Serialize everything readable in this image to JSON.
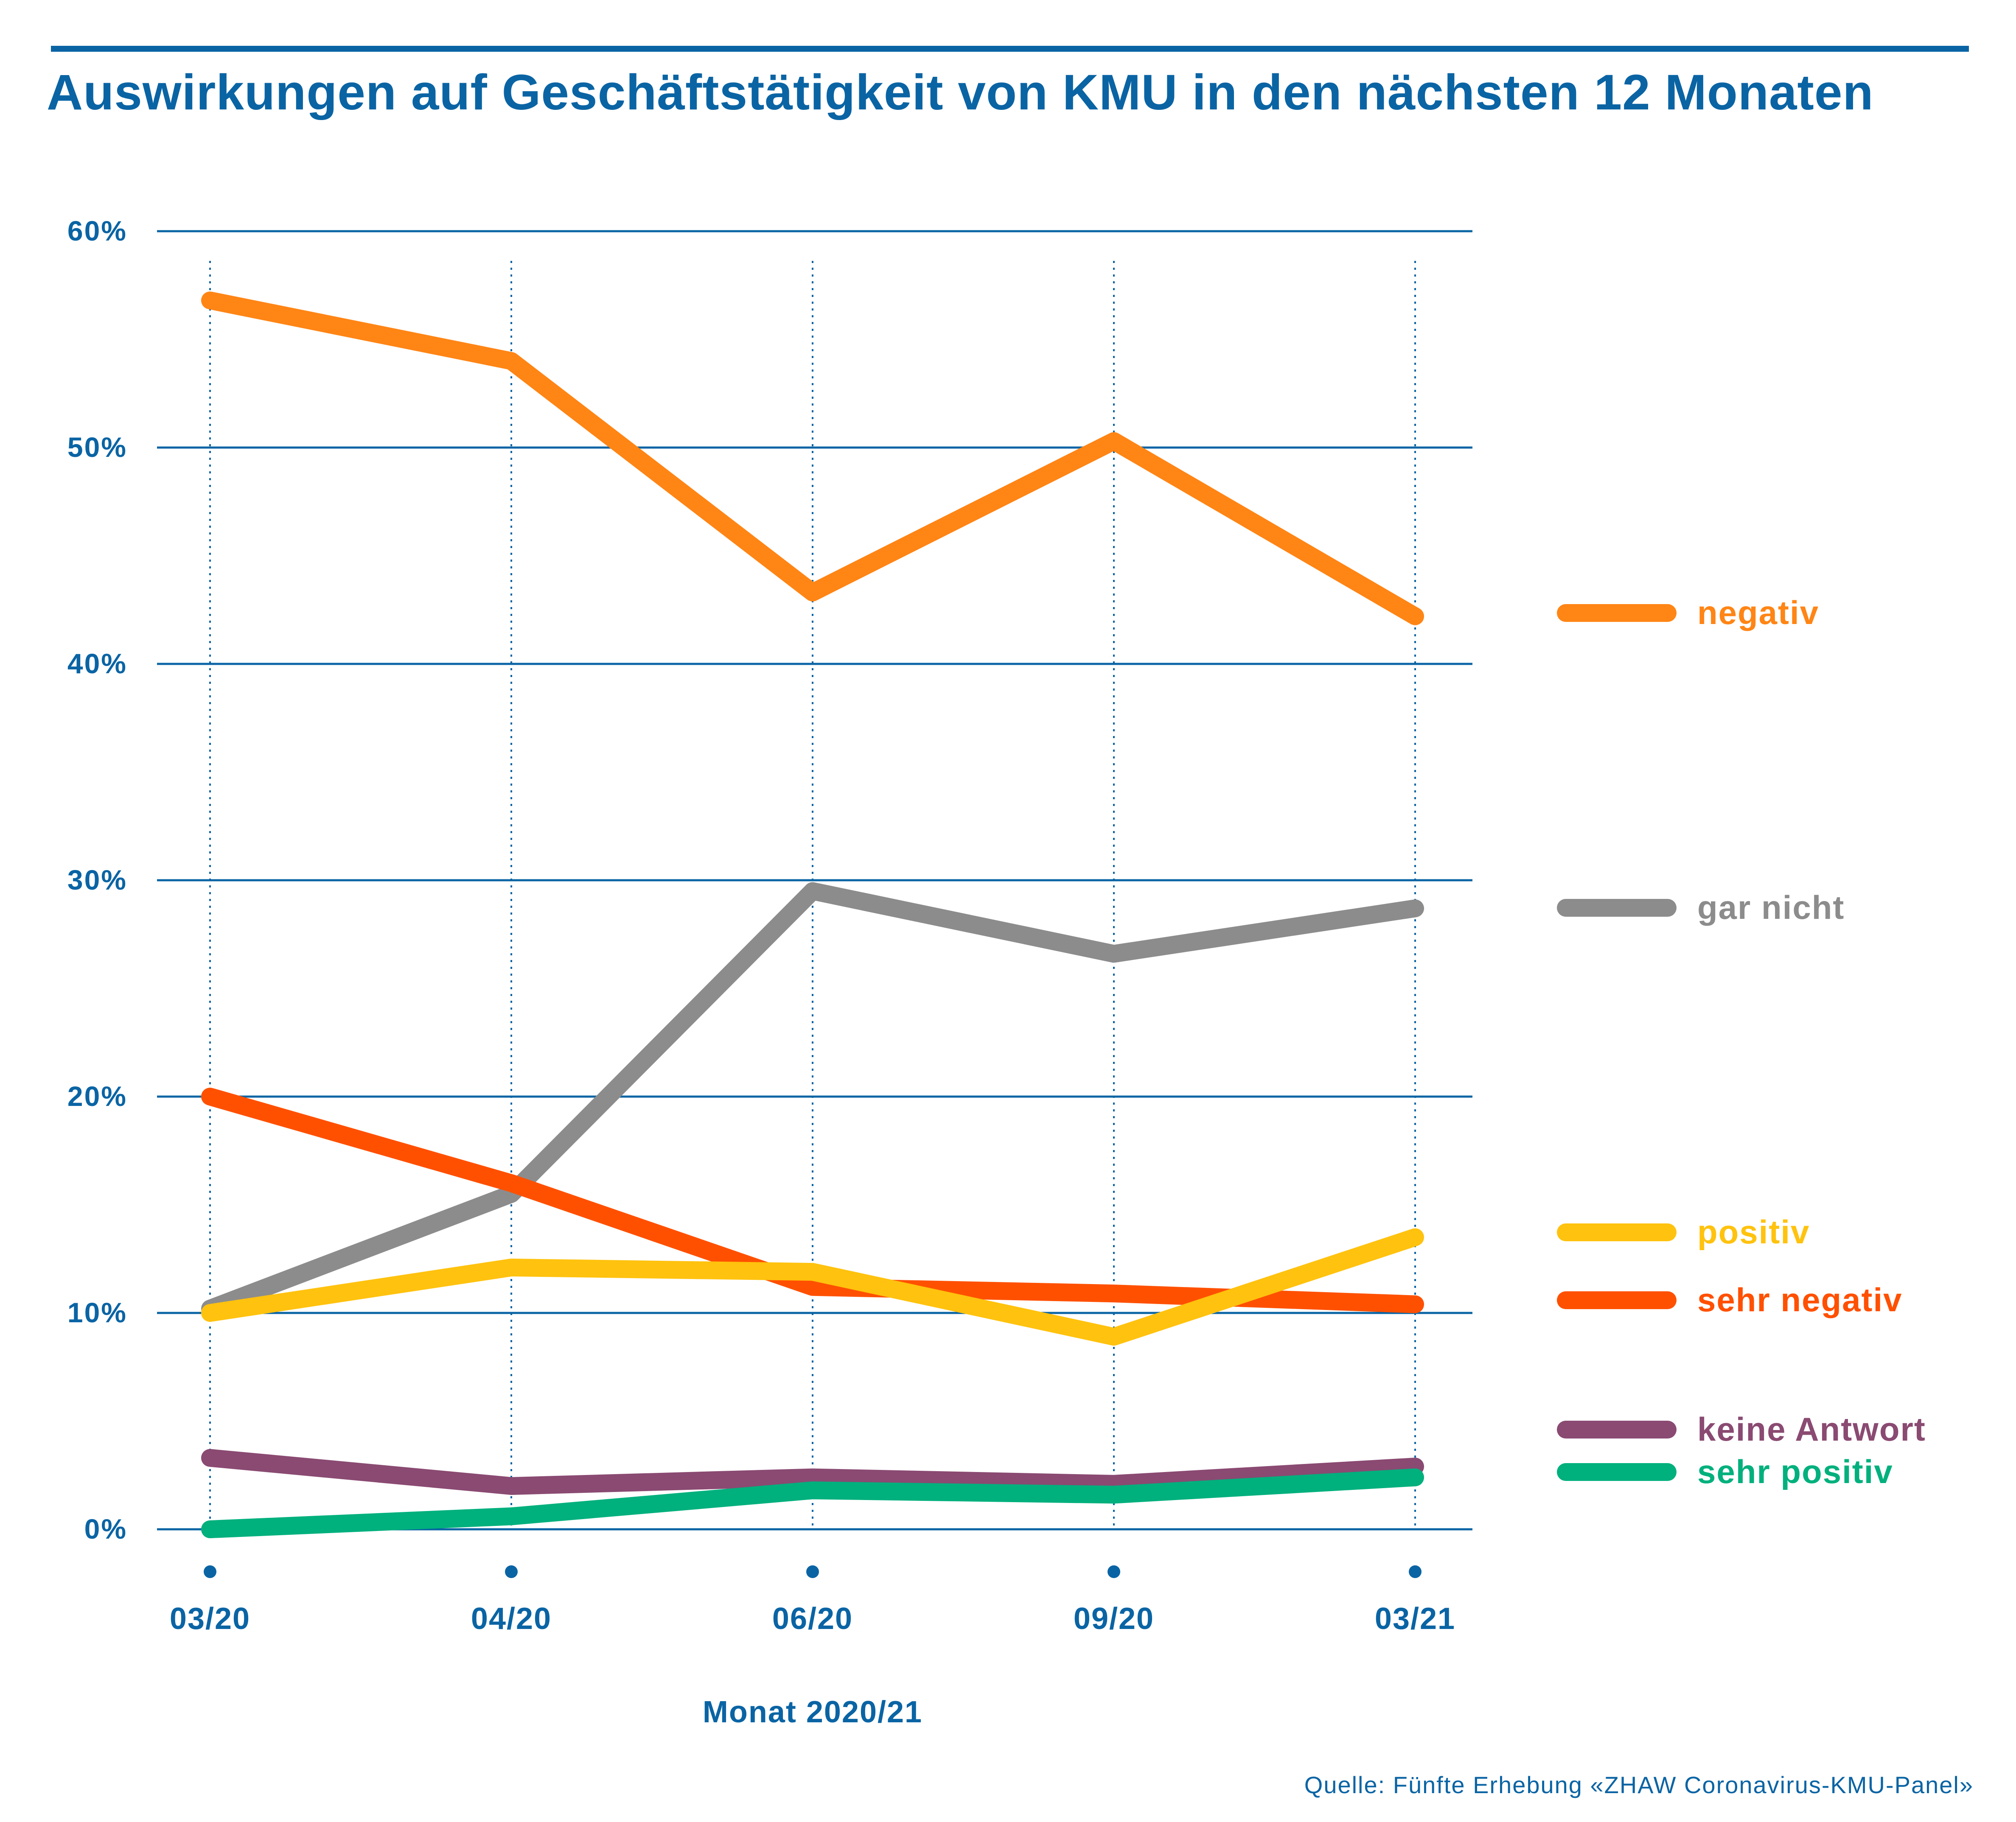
{
  "colors": {
    "accent": "#0a64a4",
    "negativ": "#ff8515",
    "gar_nicht": "#8c8c8c",
    "positiv": "#ffc20e",
    "sehr_negativ": "#ff5000",
    "keine_antwort": "#8a4a72",
    "sehr_positiv": "#00b07d"
  },
  "source": "Quelle: Fünfte Erhebung «ZHAW Coronavirus-KMU-Panel»",
  "chart_data": {
    "type": "line",
    "title": "Auswirkungen auf Geschäftstätigkeit von KMU in den nächsten 12 Monaten",
    "xlabel": "Monat 2020/21",
    "ylabel": "",
    "categories": [
      "03/20",
      "04/20",
      "06/20",
      "09/20",
      "03/21"
    ],
    "ylim": [
      0,
      60
    ],
    "yticks": [
      0,
      10,
      20,
      30,
      40,
      50,
      60
    ],
    "ytick_labels": [
      "0%",
      "10%",
      "20%",
      "30%",
      "40%",
      "50%",
      "60%"
    ],
    "grid": true,
    "legend_position": "right",
    "series": [
      {
        "name": "negativ",
        "color": "#ff8515",
        "values": [
          56.8,
          54.0,
          43.3,
          50.3,
          42.2
        ]
      },
      {
        "name": "gar nicht",
        "color": "#8c8c8c",
        "values": [
          10.2,
          15.5,
          29.5,
          26.6,
          28.7
        ]
      },
      {
        "name": "positiv",
        "color": "#ffc20e",
        "values": [
          10.0,
          12.1,
          11.9,
          8.9,
          13.5
        ]
      },
      {
        "name": "sehr negativ",
        "color": "#ff5000",
        "values": [
          20.0,
          16.0,
          11.2,
          10.9,
          10.4
        ]
      },
      {
        "name": "keine Antwort",
        "color": "#8a4a72",
        "values": [
          3.3,
          2.0,
          2.4,
          2.1,
          2.9
        ]
      },
      {
        "name": "sehr positiv",
        "color": "#00b07d",
        "values": [
          0.0,
          0.6,
          1.8,
          1.6,
          2.4
        ]
      }
    ]
  }
}
